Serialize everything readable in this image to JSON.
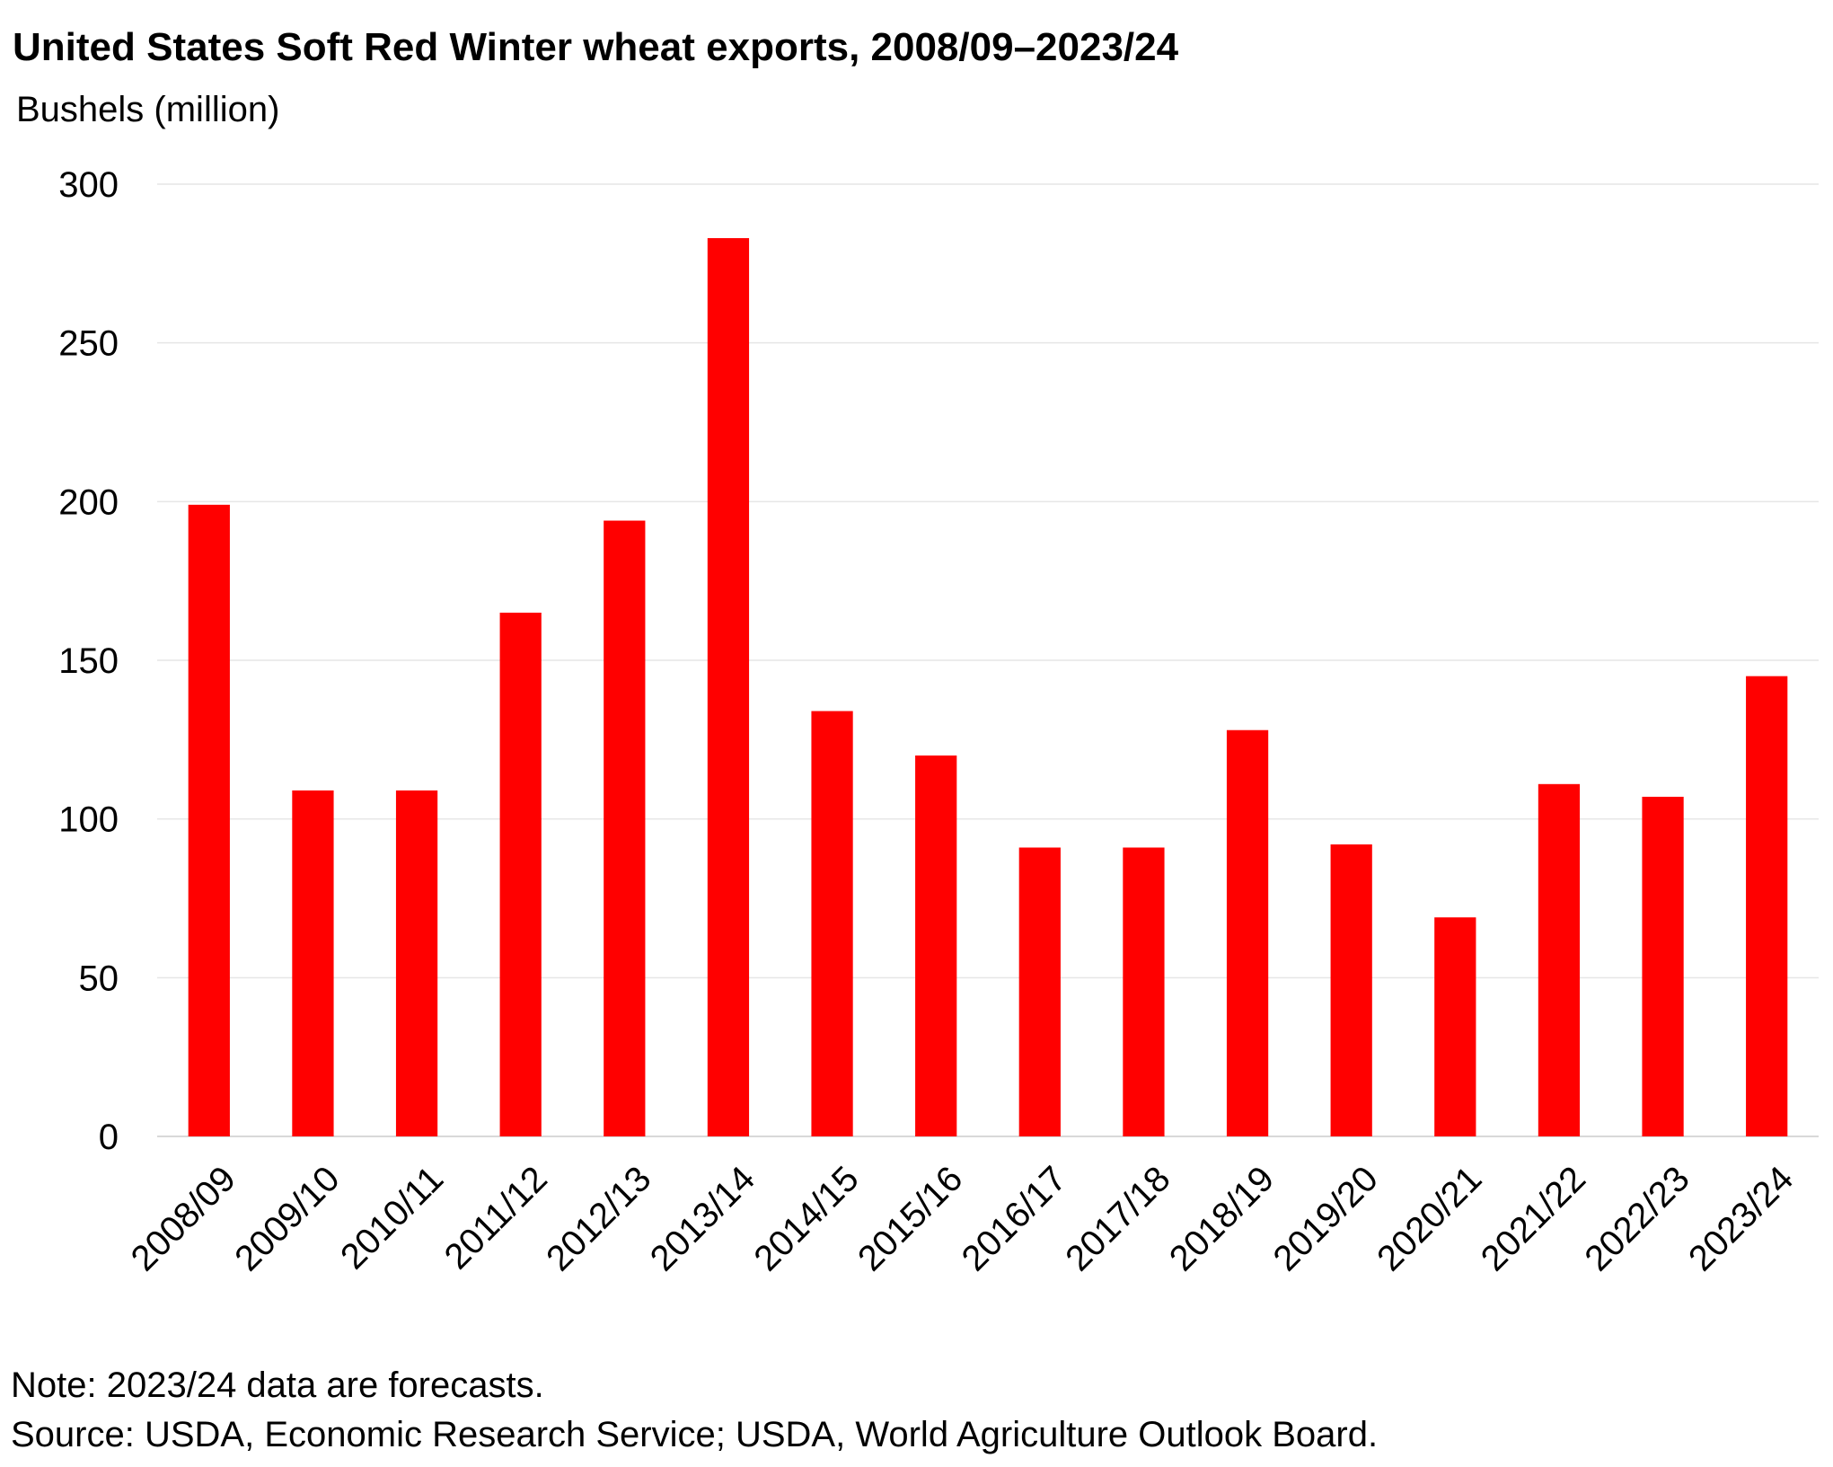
{
  "chart_data": {
    "type": "bar",
    "title": "United States Soft Red Winter wheat exports, 2008/09–2023/24",
    "ylabel": "Bushels (million)",
    "xlabel": "",
    "categories": [
      "2008/09",
      "2009/10",
      "2010/11",
      "2011/12",
      "2012/13",
      "2013/14",
      "2014/15",
      "2015/16",
      "2016/17",
      "2017/18",
      "2018/19",
      "2019/20",
      "2020/21",
      "2021/22",
      "2022/23",
      "2023/24"
    ],
    "values": [
      199,
      109,
      109,
      165,
      194,
      283,
      134,
      120,
      91,
      91,
      128,
      92,
      69,
      111,
      107,
      145
    ],
    "ylim": [
      0,
      300
    ],
    "yticks": [
      0,
      50,
      100,
      150,
      200,
      250,
      300
    ],
    "grid": true,
    "bar_color": "#ff0000",
    "gridline_color": "#e6e6e6",
    "note": "Note: 2023/24 data are forecasts.",
    "source": "Source: USDA, Economic Research Service; USDA, World Agriculture Outlook Board."
  }
}
